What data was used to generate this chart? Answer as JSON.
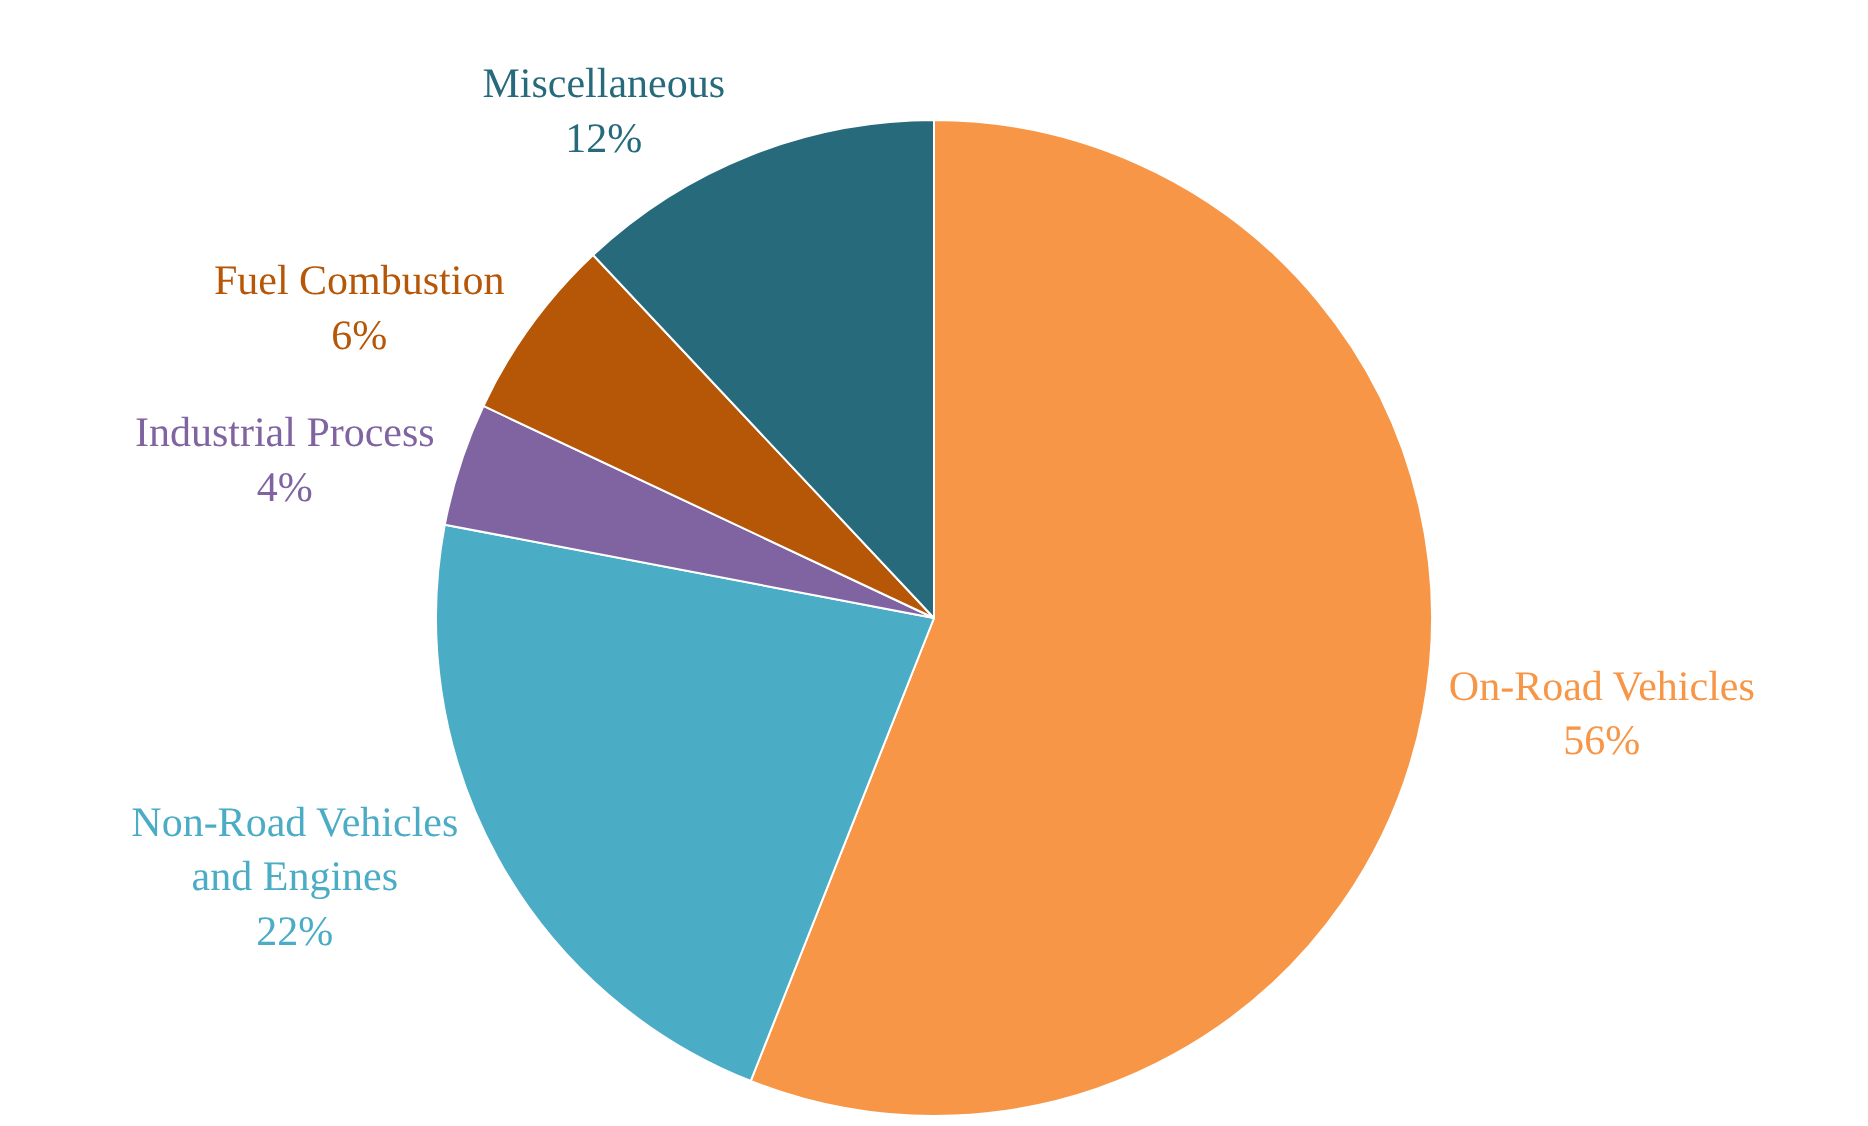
{
  "chart_data": {
    "type": "pie",
    "categories": [
      "On-Road Vehicles",
      "Non-Road Vehicles and Engines",
      "Industrial Process",
      "Fuel Combustion",
      "Miscellaneous"
    ],
    "values": [
      56,
      22,
      4,
      6,
      12
    ],
    "value_labels": [
      "56%",
      "22%",
      "4%",
      "6%",
      "12%"
    ],
    "colors": [
      "#f79646",
      "#4bacc6",
      "#8064a2",
      "#b65708",
      "#276a7c"
    ],
    "legend": false
  }
}
